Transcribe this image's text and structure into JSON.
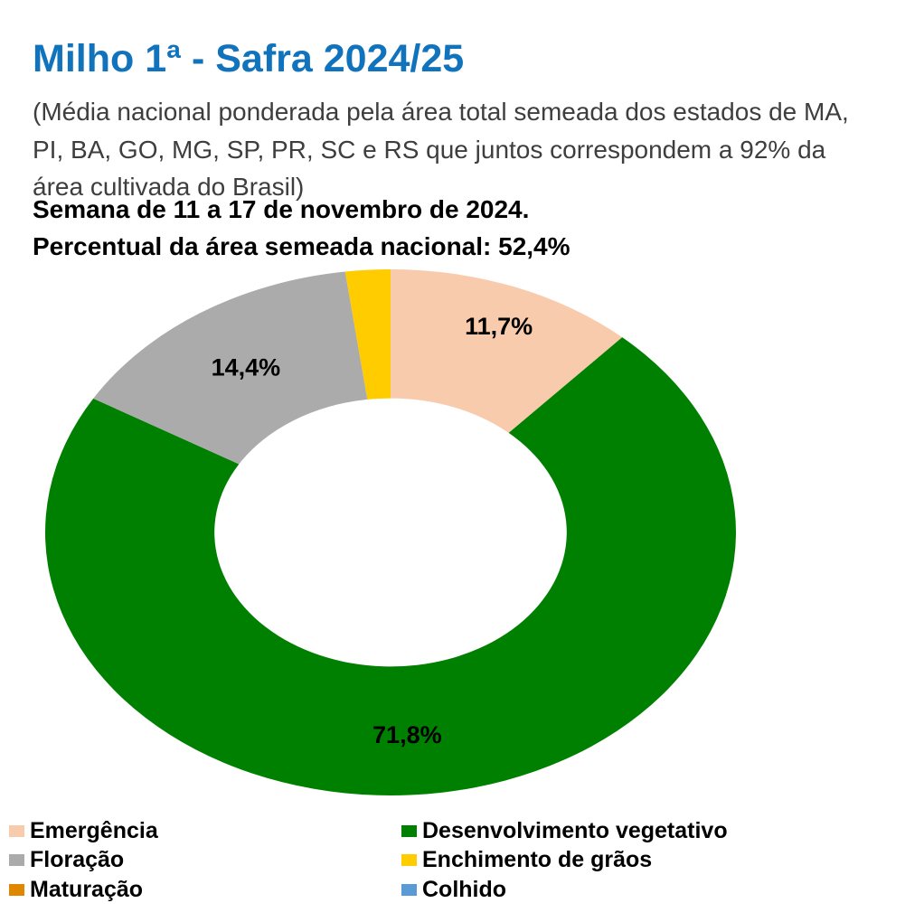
{
  "header": {
    "title": "Milho 1ª - Safra 2024/25",
    "title_color": "#1273BD",
    "subtitle_color": "#3E3E3E",
    "subtitle_lines": [
      "(Média nacional ponderada pela área total semeada dos estados de MA,",
      "PI, BA, GO, MG, SP, PR, SC e RS que juntos correspondem a 92% da",
      "área cultivada do Brasil)"
    ],
    "week_line": "Semana de 11 a 17 de novembro de 2024.",
    "sown_line": "Percentual da área semeada nacional: 52,4%"
  },
  "chart_data": {
    "type": "pie",
    "variant": "donut",
    "title": "Milho 1ª - Safra 2024/25",
    "start_angle_deg": 0,
    "direction": "clockwise",
    "hole_ratio": 0.51,
    "legend_position": "bottom",
    "categories": [
      "Emergência",
      "Desenvolvimento vegetativo",
      "Floração",
      "Enchimento de grãos",
      "Maturação",
      "Colhido"
    ],
    "values": [
      11.7,
      71.8,
      14.4,
      2.1,
      0.0,
      0.0
    ],
    "labels": [
      "11,7%",
      "71,8%",
      "14,4%",
      "",
      "",
      ""
    ],
    "colors": [
      "#F8CBAD",
      "#008000",
      "#ABABAB",
      "#FFCC00",
      "#E08700",
      "#5B9BD5"
    ]
  },
  "legend": {
    "items": [
      {
        "label": "Emergência",
        "color": "#F8CBAD"
      },
      {
        "label": "Desenvolvimento vegetativo",
        "color": "#008000"
      },
      {
        "label": "Floração",
        "color": "#ABABAB"
      },
      {
        "label": "Enchimento de grãos",
        "color": "#FFCC00"
      },
      {
        "label": "Maturação",
        "color": "#E08700"
      },
      {
        "label": "Colhido",
        "color": "#5B9BD5"
      }
    ]
  }
}
